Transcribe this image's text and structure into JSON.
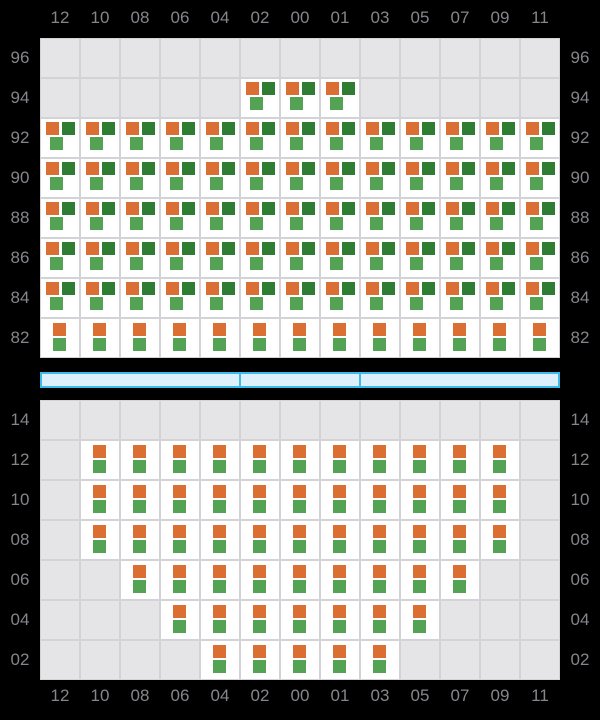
{
  "palette": {
    "background": "#000000",
    "orange": "#db6e33",
    "dark_green": "#2e7d32",
    "green": "#54a354",
    "cell_bg": "#ffffff",
    "empty_bg": "#e5e4e7",
    "grid_line": "#d3d2d7",
    "label_text": "#85858b",
    "bar_border": "#3ebbeb",
    "bar_fill": "#dcf1fb"
  },
  "chart_data": {
    "type": "heatmap",
    "columns": [
      "12",
      "10",
      "08",
      "06",
      "04",
      "02",
      "00",
      "01",
      "03",
      "05",
      "07",
      "09",
      "11"
    ],
    "glyph_legend": {
      "triple": [
        "orange",
        "dark_green",
        "green"
      ],
      "double": [
        "orange",
        "green"
      ]
    },
    "top_panel": {
      "row_labels": [
        "96",
        "94",
        "92",
        "90",
        "88",
        "86",
        "84",
        "82"
      ],
      "rows": [
        {
          "label": "96",
          "glyph": null,
          "active_columns": []
        },
        {
          "label": "94",
          "glyph": "triple",
          "active_columns": [
            "02",
            "00",
            "01"
          ]
        },
        {
          "label": "92",
          "glyph": "triple",
          "active_columns": [
            "12",
            "10",
            "08",
            "06",
            "04",
            "02",
            "00",
            "01",
            "03",
            "05",
            "07",
            "09",
            "11"
          ]
        },
        {
          "label": "90",
          "glyph": "triple",
          "active_columns": [
            "12",
            "10",
            "08",
            "06",
            "04",
            "02",
            "00",
            "01",
            "03",
            "05",
            "07",
            "09",
            "11"
          ]
        },
        {
          "label": "88",
          "glyph": "triple",
          "active_columns": [
            "12",
            "10",
            "08",
            "06",
            "04",
            "02",
            "00",
            "01",
            "03",
            "05",
            "07",
            "09",
            "11"
          ]
        },
        {
          "label": "86",
          "glyph": "triple",
          "active_columns": [
            "12",
            "10",
            "08",
            "06",
            "04",
            "02",
            "00",
            "01",
            "03",
            "05",
            "07",
            "09",
            "11"
          ]
        },
        {
          "label": "84",
          "glyph": "triple",
          "active_columns": [
            "12",
            "10",
            "08",
            "06",
            "04",
            "02",
            "00",
            "01",
            "03",
            "05",
            "07",
            "09",
            "11"
          ]
        },
        {
          "label": "82",
          "glyph": "double",
          "active_columns": [
            "12",
            "10",
            "08",
            "06",
            "04",
            "02",
            "00",
            "01",
            "03",
            "05",
            "07",
            "09",
            "11"
          ]
        }
      ]
    },
    "divider_bar": {
      "segment_column_spans": [
        5,
        3,
        5
      ]
    },
    "bottom_panel": {
      "row_labels": [
        "14",
        "12",
        "10",
        "08",
        "06",
        "04",
        "02"
      ],
      "rows": [
        {
          "label": "14",
          "glyph": null,
          "active_columns": []
        },
        {
          "label": "12",
          "glyph": "double",
          "active_columns": [
            "10",
            "08",
            "06",
            "04",
            "02",
            "00",
            "01",
            "03",
            "05",
            "07",
            "09"
          ]
        },
        {
          "label": "10",
          "glyph": "double",
          "active_columns": [
            "10",
            "08",
            "06",
            "04",
            "02",
            "00",
            "01",
            "03",
            "05",
            "07",
            "09"
          ]
        },
        {
          "label": "08",
          "glyph": "double",
          "active_columns": [
            "10",
            "08",
            "06",
            "04",
            "02",
            "00",
            "01",
            "03",
            "05",
            "07",
            "09"
          ]
        },
        {
          "label": "06",
          "glyph": "double",
          "active_columns": [
            "08",
            "06",
            "04",
            "02",
            "00",
            "01",
            "03",
            "05",
            "07"
          ]
        },
        {
          "label": "04",
          "glyph": "double",
          "active_columns": [
            "06",
            "04",
            "02",
            "00",
            "01",
            "03",
            "05"
          ]
        },
        {
          "label": "02",
          "glyph": "double",
          "active_columns": [
            "04",
            "02",
            "00",
            "01",
            "03"
          ]
        }
      ]
    },
    "bottom_axis_columns": [
      "12",
      "10",
      "08",
      "06",
      "04",
      "02",
      "00",
      "01",
      "03",
      "05",
      "07",
      "09",
      "11"
    ]
  }
}
